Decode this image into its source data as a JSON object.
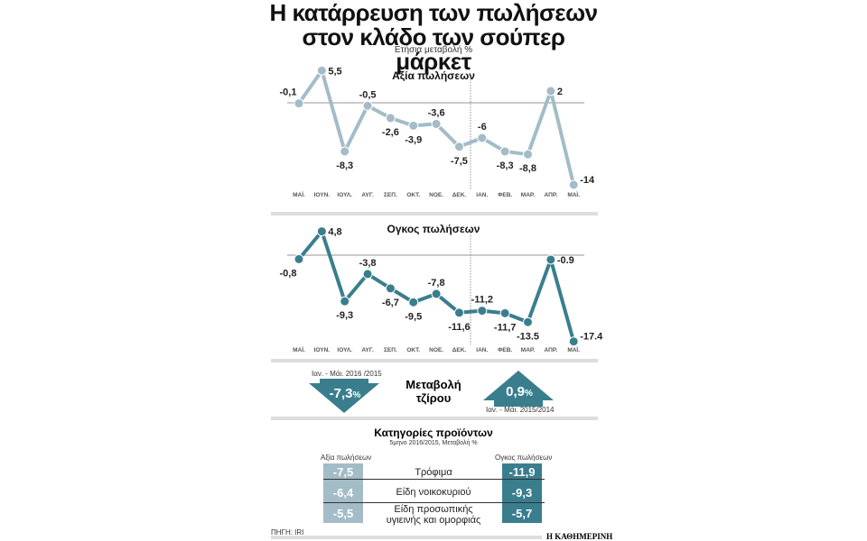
{
  "title_line1": "Η κατάρρευση των πωλήσεων",
  "title_line2": "στον κλάδο των σούπερ μάρκετ",
  "subtitle": "Ετήσια μεταβολή %",
  "colors": {
    "light": "#a3bcc7",
    "dark": "#3a7e8e"
  },
  "chart_data": [
    {
      "type": "line",
      "title": "Αξία πωλήσεων",
      "categories": [
        "ΜΑΪ.",
        "ΙΟΥΝ.",
        "ΙΟΥΛ.",
        "ΑΥΓ.",
        "ΣΕΠ.",
        "ΟΚΤ.",
        "ΝΟΕ.",
        "ΔΕΚ.",
        "ΙΑΝ.",
        "ΦΕΒ.",
        "ΜΑΡ.",
        "ΑΠΡ.",
        "ΜΑΪ."
      ],
      "values": [
        -0.1,
        5.5,
        -8.3,
        -0.5,
        -2.6,
        -3.9,
        -3.6,
        -7.5,
        -6,
        -8.3,
        -8.8,
        2,
        -14
      ],
      "labels": [
        "-0,1",
        "5,5",
        "-8,3",
        "-0,5",
        "-2,6",
        "-3,9",
        "-3,6",
        "-7,5",
        "-6",
        "-8,3",
        "-8,8",
        "2",
        "-14"
      ]
    },
    {
      "type": "line",
      "title": "Ογκος πωλήσεων",
      "categories": [
        "ΜΑΪ.",
        "ΙΟΥΝ.",
        "ΙΟΥΛ.",
        "ΑΥΓ.",
        "ΣΕΠ.",
        "ΟΚΤ.",
        "ΝΟΕ.",
        "ΔΕΚ.",
        "ΙΑΝ.",
        "ΦΕΒ.",
        "ΜΑΡ.",
        "ΑΠΡ.",
        "ΜΑΪ."
      ],
      "values": [
        -0.8,
        4.8,
        -9.3,
        -3.8,
        -6.7,
        -9.5,
        -7.8,
        -11.6,
        -11.2,
        -11.7,
        -13.5,
        -0.9,
        -17.4
      ],
      "labels": [
        "-0,8",
        "4,8",
        "-9,3",
        "-3,8",
        "-6,7",
        "-9,5",
        "-7,8",
        "-11,6",
        "-11,2",
        "-11,7",
        "-13.5",
        "-0.9",
        "-17.4"
      ]
    }
  ],
  "turnover": {
    "label1": "Μεταβολή",
    "label2": "τζίρου",
    "left_period": "Ιαν. - Μάι. 2016 /2015",
    "left_value": "-7,3",
    "right_period": "Ιαν. - Μάι. 2015/2014",
    "right_value": "0,9",
    "pct": "%"
  },
  "categories": {
    "title": "Κατηγορίες προϊόντων",
    "subtitle": "5μηνο 2016/2015, Μεταβολή %",
    "left_header": "Αξία πωλήσεων",
    "right_header": "Ογκος πωλήσεων",
    "rows": [
      {
        "name": "Τρόφιμα",
        "value": "-7,5",
        "volume": "-11,9"
      },
      {
        "name": "Είδη νοικοκυριού",
        "value": "-6,4",
        "volume": "-9,3"
      },
      {
        "name": "Είδη προσωπικής υγιεινής και ομορφιάς",
        "value": "-5,5",
        "volume": "-5,7"
      }
    ]
  },
  "source": "ΠΗΓΗ: IRI",
  "publisher": "Η ΚΑΘΗΜΕΡΙΝΗ"
}
